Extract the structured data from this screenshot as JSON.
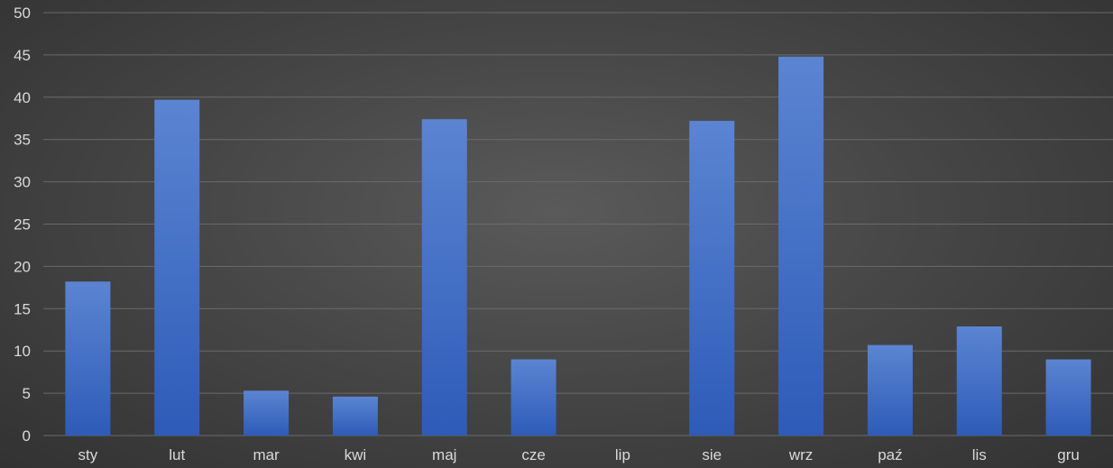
{
  "chart_data": {
    "type": "bar",
    "categories": [
      "sty",
      "lut",
      "mar",
      "kwi",
      "maj",
      "cze",
      "lip",
      "sie",
      "wrz",
      "paź",
      "lis",
      "gru"
    ],
    "series": [
      {
        "values": [
          18.2,
          39.7,
          5.3,
          4.6,
          37.4,
          9.0,
          0,
          37.2,
          44.8,
          10.7,
          12.9,
          9.0
        ]
      }
    ],
    "ylim": [
      0,
      50
    ],
    "yticks": [
      0,
      5,
      10,
      15,
      20,
      25,
      30,
      35,
      40,
      45,
      50
    ],
    "title": "",
    "xlabel": "",
    "ylabel": "",
    "grid": true,
    "legend": "none"
  },
  "colors": {
    "bar_top": "#5b85d2",
    "bar_bottom": "#2e5bb8",
    "grid": "#6a6a6a",
    "tick_text": "#d9d9d9"
  }
}
